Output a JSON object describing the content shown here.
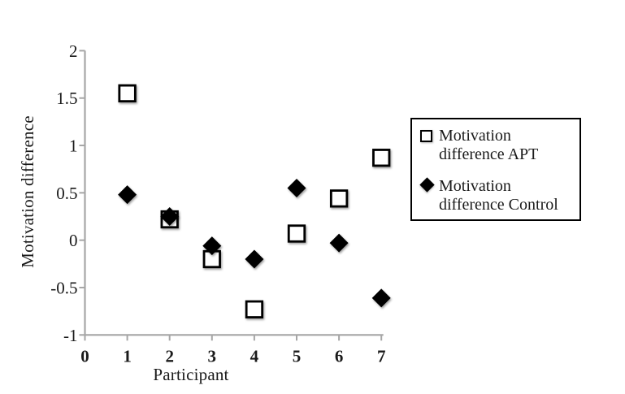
{
  "chart_data": {
    "type": "scatter",
    "title": "",
    "xlabel": "Participant",
    "ylabel": "Motivation difference",
    "xlim": [
      0,
      7
    ],
    "ylim": [
      -1,
      2
    ],
    "x_ticks": [
      0,
      1,
      2,
      3,
      4,
      5,
      6,
      7
    ],
    "y_ticks": [
      2,
      1.5,
      1,
      0.5,
      0,
      -0.5,
      -1
    ],
    "x": [
      1,
      2,
      3,
      4,
      5,
      6,
      7
    ],
    "series": [
      {
        "name": "Motivation difference APT",
        "marker": "open-square",
        "values": [
          1.55,
          0.22,
          -0.2,
          -0.73,
          0.07,
          0.44,
          0.87
        ]
      },
      {
        "name": "Motivation difference Control",
        "marker": "filled-diamond",
        "values": [
          0.48,
          0.25,
          -0.06,
          -0.2,
          0.55,
          -0.03,
          -0.61
        ]
      }
    ],
    "legend_position": "right",
    "grid": false
  },
  "colors": {
    "background": "#ffffff",
    "axis": "#a6a6a6",
    "marker": "#000000",
    "text": "#1a1a1a",
    "legend_border": "#000000"
  }
}
